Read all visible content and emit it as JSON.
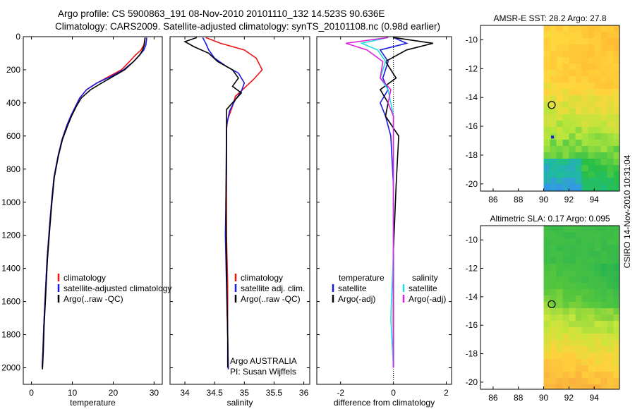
{
  "header": {
    "line1": "Argo profile: CS 5900863_191 08-Nov-2010 20101110_132 14.523S 90.636E",
    "line2": "Climatology: CARS2009. Satellite-adjusted climatology: synTS_20101108.nc (0.98d earlier)"
  },
  "side_label": "CSIRO 14-Nov-2010 10:31:04",
  "colors": {
    "clim": "#ee1111",
    "sat": "#1a1ae6",
    "argo": "#000000",
    "cyan": "#22dddd",
    "magenta": "#dd22dd"
  },
  "chart_data": [
    {
      "id": "temperature",
      "type": "line",
      "xlabel": "temperature",
      "ylabel": "",
      "title": "",
      "xlim": [
        -2,
        32
      ],
      "ylim": [
        2100,
        0
      ],
      "xticks": [
        0,
        10,
        20,
        30
      ],
      "yticks": [
        0,
        200,
        400,
        600,
        800,
        1000,
        1200,
        1400,
        1600,
        1800,
        2000
      ],
      "series": [
        {
          "name": "climatology",
          "color": "clim",
          "x": [
            27.8,
            27.5,
            26.8,
            25.5,
            24,
            22,
            19,
            16,
            13.5,
            11.8,
            10.8,
            9.6,
            8.6,
            7.5,
            6.5,
            5.5,
            4.9,
            4.4,
            3.8,
            3.4,
            3.0,
            2.8,
            2.6
          ],
          "y": [
            5,
            50,
            80,
            110,
            150,
            200,
            240,
            280,
            320,
            370,
            420,
            480,
            540,
            620,
            720,
            850,
            1000,
            1150,
            1350,
            1550,
            1750,
            1900,
            2000
          ]
        },
        {
          "name": "satellite-adjusted climatology",
          "color": "sat",
          "x": [
            28.2,
            28,
            27.5,
            26.5,
            25,
            22.5,
            19.5,
            16,
            13.5,
            11.8,
            10.8,
            9.6,
            8.6,
            7.5,
            6.5,
            5.5,
            4.9,
            4.4,
            3.8,
            3.4,
            3.0,
            2.8,
            2.6
          ],
          "y": [
            5,
            50,
            80,
            110,
            150,
            200,
            240,
            280,
            320,
            370,
            420,
            480,
            540,
            620,
            720,
            850,
            1000,
            1150,
            1350,
            1550,
            1750,
            1900,
            2000
          ]
        },
        {
          "name": "Argo(..raw -QC)",
          "color": "argo",
          "x": [
            27.8,
            27.6,
            27.2,
            26.5,
            25,
            22.8,
            20,
            17.2,
            14.5,
            12.2,
            11,
            9.8,
            8.8,
            7.6,
            6.6,
            5.6,
            5.0,
            4.5,
            3.9,
            3.5,
            3.1,
            2.9,
            2.7
          ],
          "y": [
            5,
            50,
            80,
            110,
            150,
            200,
            240,
            280,
            320,
            370,
            420,
            480,
            540,
            620,
            720,
            850,
            1000,
            1150,
            1350,
            1550,
            1750,
            1900,
            2010
          ]
        }
      ],
      "legend": [
        "climatology",
        "satellite-adjusted climatology",
        "Argo(..raw -QC)"
      ]
    },
    {
      "id": "salinity",
      "type": "line",
      "xlabel": "salinity",
      "ylabel": "",
      "title": "",
      "xlim": [
        33.75,
        36.1
      ],
      "ylim": [
        2100,
        0
      ],
      "xticks": [
        34,
        34.5,
        35,
        35.5,
        36
      ],
      "yticks": [],
      "series": [
        {
          "name": "climatology",
          "color": "clim",
          "x": [
            34.35,
            34.6,
            35.0,
            35.2,
            35.3,
            35.15,
            35.0,
            34.85,
            34.8,
            34.72,
            34.7,
            34.7,
            34.7,
            34.72,
            34.72,
            34.73
          ],
          "y": [
            5,
            40,
            80,
            130,
            200,
            260,
            310,
            360,
            420,
            500,
            560,
            800,
            1200,
            1500,
            1800,
            2000
          ]
        },
        {
          "name": "satellite adj. clim.",
          "color": "sat",
          "x": [
            34.3,
            34.35,
            34.4,
            34.5,
            34.7,
            34.9,
            35.0,
            34.95,
            34.85,
            34.75,
            34.7,
            34.7,
            34.68,
            34.7,
            34.72,
            34.73
          ],
          "y": [
            5,
            40,
            80,
            130,
            180,
            220,
            280,
            330,
            380,
            450,
            540,
            800,
            1200,
            1500,
            1800,
            2010
          ]
        },
        {
          "name": "Argo(..raw -QC)",
          "color": "argo",
          "x": [
            34.2,
            34.0,
            34.15,
            34.4,
            34.55,
            34.8,
            34.9,
            34.8,
            34.95,
            34.85,
            34.7,
            34.7,
            34.69,
            34.7,
            34.72,
            34.72
          ],
          "y": [
            5,
            30,
            60,
            100,
            150,
            200,
            250,
            300,
            340,
            380,
            440,
            560,
            1000,
            1400,
            1800,
            2000
          ]
        }
      ],
      "legend": [
        "climatology",
        "satellite adj. clim.",
        "Argo(..raw -QC)"
      ],
      "annotations": [
        "Argo AUSTRALIA",
        "PI: Susan Wijffels"
      ]
    },
    {
      "id": "difference",
      "type": "line",
      "xlabel": "difference from climatology",
      "ylabel": "",
      "title": "",
      "xlim": [
        -2.9,
        2.2
      ],
      "ylim": [
        2100,
        0
      ],
      "xticks": [
        -2,
        0,
        2
      ],
      "yticks": [],
      "series": [
        {
          "name": "temperature satellite",
          "color": "sat",
          "x": [
            0,
            0.5,
            -0.5,
            -0.2,
            -0.4,
            -0.2,
            -0.5,
            -0.3,
            -0.1,
            0,
            0,
            0,
            0
          ],
          "y": [
            5,
            40,
            80,
            150,
            250,
            320,
            400,
            480,
            600,
            900,
            1300,
            1700,
            2000
          ]
        },
        {
          "name": "temperature Argo(-adj)",
          "color": "argo",
          "x": [
            0,
            1.5,
            0.5,
            -0.3,
            0.1,
            -0.5,
            -0.2,
            -0.3,
            0.2,
            0.1,
            0,
            0,
            0
          ],
          "y": [
            5,
            40,
            80,
            150,
            250,
            320,
            400,
            480,
            600,
            900,
            1300,
            1700,
            2000
          ]
        },
        {
          "name": "salinity satellite",
          "color": "cyan",
          "x": [
            -0.2,
            -1.2,
            -0.6,
            -0.3,
            -0.5,
            -0.2,
            -0.1,
            0,
            0,
            0,
            0,
            -0.1,
            0
          ],
          "y": [
            5,
            40,
            80,
            150,
            250,
            320,
            400,
            480,
            600,
            900,
            1300,
            1700,
            2000
          ]
        },
        {
          "name": "salinity Argo(-adj)",
          "color": "magenta",
          "x": [
            -0.2,
            -1.8,
            -1.0,
            -0.4,
            -0.5,
            -0.1,
            -0.2,
            0,
            0,
            0,
            0,
            0,
            0
          ],
          "y": [
            5,
            40,
            80,
            150,
            250,
            320,
            400,
            480,
            600,
            900,
            1300,
            1700,
            2000
          ]
        }
      ],
      "legend_headers": [
        "temperature",
        "salinity"
      ],
      "legend": [
        "satellite",
        "Argo(-adj)",
        "satellite",
        "Argo(-adj)"
      ]
    },
    {
      "id": "sst-map",
      "type": "heatmap",
      "title": "AMSR-E SST: 28.2 Argo: 27.8",
      "xlim": [
        85,
        96
      ],
      "ylim": [
        -20.5,
        -9
      ],
      "xticks": [
        86,
        88,
        90,
        92,
        94
      ],
      "yticks": [
        -10,
        -12,
        -14,
        -16,
        -18,
        -20
      ],
      "float_marker": {
        "lon": 90.636,
        "lat": -14.523
      },
      "data_x_min": 90
    },
    {
      "id": "sla-map",
      "type": "heatmap",
      "title": "Altimetric SLA: 0.17 Argo: 0.095",
      "xlim": [
        85,
        96
      ],
      "ylim": [
        -20.5,
        -9
      ],
      "xticks": [
        86,
        88,
        90,
        92,
        94
      ],
      "yticks": [
        -10,
        -12,
        -14,
        -16,
        -18,
        -20
      ],
      "float_marker": {
        "lon": 90.636,
        "lat": -14.523
      },
      "data_x_min": 90
    }
  ]
}
